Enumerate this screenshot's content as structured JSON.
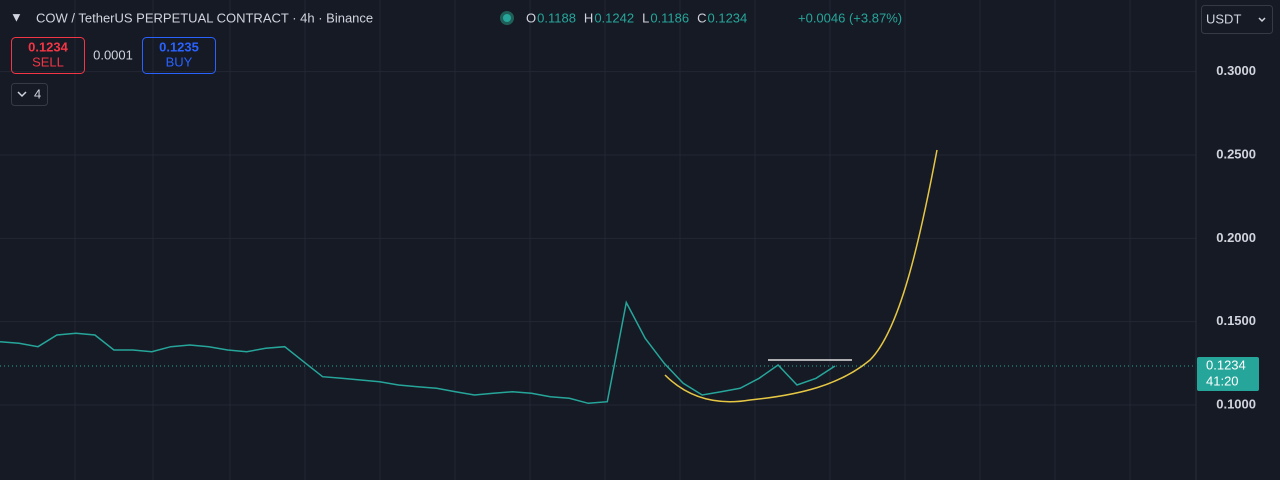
{
  "header": {
    "symbol": "COW / TetherUS PERPETUAL CONTRACT · 4h · Binance",
    "ohlc": [
      {
        "key": "O",
        "value": "0.1188"
      },
      {
        "key": "H",
        "value": "0.1242"
      },
      {
        "key": "L",
        "value": "0.1186"
      },
      {
        "key": "C",
        "value": "0.1234"
      }
    ],
    "change": "+0.0046 (+3.87%)"
  },
  "trade": {
    "sell_price": "0.1234",
    "sell_label": "SELL",
    "spread": "0.0001",
    "buy_price": "0.1235",
    "buy_label": "BUY"
  },
  "indicators": "4",
  "currency": "USDT",
  "price_tag": {
    "price": "0.1234",
    "countdown": "41:20"
  },
  "chart_data": {
    "type": "line",
    "color": "#26a69a",
    "categories": [
      null,
      null,
      null,
      null,
      null,
      null,
      null,
      null,
      null,
      null,
      null,
      null,
      null,
      null,
      null,
      null,
      null,
      null,
      null,
      null,
      null,
      null,
      null,
      null,
      null,
      null,
      null,
      null,
      null,
      null,
      null,
      null,
      null,
      null,
      null,
      null,
      null,
      null,
      null,
      null,
      null,
      null,
      null,
      null,
      null
    ],
    "values": [
      0.138,
      0.137,
      0.135,
      0.142,
      0.143,
      0.142,
      0.133,
      0.133,
      0.132,
      0.135,
      0.136,
      0.135,
      0.133,
      0.132,
      0.134,
      0.135,
      0.126,
      0.117,
      0.116,
      0.115,
      0.114,
      0.112,
      0.111,
      0.11,
      0.108,
      0.106,
      0.107,
      0.108,
      0.107,
      0.105,
      0.104,
      0.101,
      0.102,
      0.1615,
      0.14,
      0.125,
      0.113,
      0.106,
      0.108,
      0.11,
      0.116,
      0.124,
      0.112,
      0.116,
      0.1234
    ],
    "ylim": [
      0.055,
      0.343
    ],
    "yticks": [
      {
        "value": 0.1,
        "label": "0.1000"
      },
      {
        "value": 0.15,
        "label": "0.1500"
      },
      {
        "value": 0.2,
        "label": "0.2000"
      },
      {
        "value": 0.25,
        "label": "0.2500"
      },
      {
        "value": 0.3,
        "label": "0.3000"
      }
    ],
    "grid": true
  }
}
